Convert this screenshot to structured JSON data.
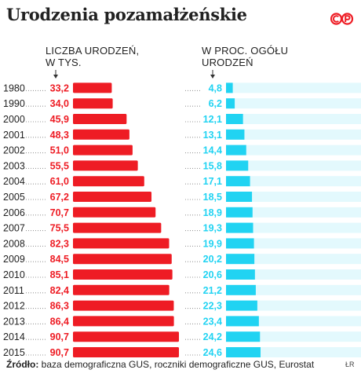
{
  "title": "Urodzenia pozamałżeńskie",
  "logo_text": "©P",
  "headers": {
    "left": "LICZBA URODZEŃ,\nW TYS.",
    "right": "W PROC. OGÓŁU\nURODZEŃ"
  },
  "source_label": "Źródło:",
  "source_text": " baza demograficzna GUS, roczniki demograficzne GUS, Eurostat",
  "author": "ŁR",
  "colors": {
    "red": "#ee1c24",
    "cyan": "#21d3f2",
    "cyan_light": "#e3f9fd",
    "dots": "#999999"
  },
  "chart_data": {
    "type": "bar",
    "categories": [
      "1980",
      "1990",
      "2000",
      "2001",
      "2002",
      "2003",
      "2004",
      "2005",
      "2006",
      "2007",
      "2008",
      "2009",
      "2010",
      "2011",
      "2012",
      "2013",
      "2014",
      "2015"
    ],
    "series": [
      {
        "name": "LICZBA URODZEŃ, W TYS.",
        "values": [
          33.2,
          34.0,
          45.9,
          48.3,
          51.0,
          55.5,
          61.0,
          67.2,
          70.7,
          75.5,
          82.3,
          84.5,
          85.1,
          82.4,
          86.3,
          86.4,
          90.7,
          90.7
        ],
        "labels": [
          "33,2",
          "34,0",
          "45,9",
          "48,3",
          "51,0",
          "55,5",
          "61,0",
          "67,2",
          "70,7",
          "75,5",
          "82,3",
          "84,5",
          "85,1",
          "82,4",
          "86,3",
          "86,4",
          "90,7",
          "90,7"
        ],
        "color": "#ee1c24"
      },
      {
        "name": "W PROC. OGÓŁU URODZEŃ",
        "values": [
          4.8,
          6.2,
          12.1,
          13.1,
          14.4,
          15.8,
          17.1,
          18.5,
          18.9,
          19.3,
          19.9,
          20.2,
          20.6,
          21.2,
          22.3,
          23.4,
          24.2,
          24.6
        ],
        "labels": [
          "4,8",
          "6,2",
          "12,1",
          "13,1",
          "14,4",
          "15,8",
          "17,1",
          "18,5",
          "18,9",
          "19,3",
          "19,9",
          "20,2",
          "20,6",
          "21,2",
          "22,3",
          "23,4",
          "24,2",
          "24,6"
        ],
        "color": "#21d3f2",
        "max": 100
      }
    ],
    "xlabel": "",
    "ylabel": "",
    "grid": false,
    "legend": "none"
  }
}
